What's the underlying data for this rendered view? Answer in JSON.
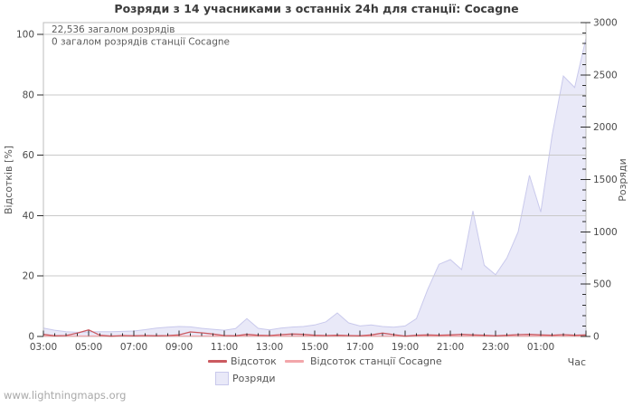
{
  "title": "Розряди з 14 учасниками з останніх 24h для станції: Cocagne",
  "watermark": "www.lightningmaps.org",
  "annotations": {
    "total": "22,536 загалом розрядів",
    "station_total": "0 загалом розрядів станції Cocagne"
  },
  "legend": {
    "percent": "Відсоток",
    "station_percent": "Відсоток станції Cocagne",
    "discharges": "Розряди"
  },
  "colors": {
    "area_fill": "#e9e9f8",
    "area_stroke": "#c9c9ec",
    "percent_line": "#cb5a60",
    "station_line": "#f2a6aa",
    "grid": "#c9c9c9",
    "plot_border": "#bcbcbc",
    "tick": "#2b2b2b",
    "text": "#555555",
    "title": "#3b3b3b",
    "watermark": "#a9a9a9"
  },
  "chart_data": {
    "type": "area",
    "title": "Розряди з 14 учасниками з останніх 24h для станції: Cocagne",
    "grid": "horizontal, every 20% of left axis",
    "legend_position": "bottom",
    "x_axis": {
      "label": "Час",
      "tick_labels": [
        "03:00",
        "05:00",
        "07:00",
        "09:00",
        "11:00",
        "13:00",
        "15:00",
        "17:00",
        "19:00",
        "21:00",
        "23:00",
        "01:00"
      ],
      "minor_tick_minutes": 30,
      "major_tick_hours": 2
    },
    "y_left": {
      "label": "Відсотків [%]",
      "ticks": [
        0,
        20,
        40,
        60,
        80,
        100
      ],
      "range": [
        0,
        100
      ]
    },
    "y_right": {
      "label": "Розряди",
      "ticks": [
        0,
        500,
        1000,
        1500,
        2000,
        2500,
        3000
      ],
      "minor_step": 100,
      "range": [
        0,
        3000
      ]
    },
    "x_times": [
      "03:00",
      "03:30",
      "04:00",
      "04:30",
      "05:00",
      "05:30",
      "06:00",
      "06:30",
      "07:00",
      "07:30",
      "08:00",
      "08:30",
      "09:00",
      "09:30",
      "10:00",
      "10:30",
      "11:00",
      "11:30",
      "12:00",
      "12:30",
      "13:00",
      "13:30",
      "14:00",
      "14:30",
      "15:00",
      "15:30",
      "16:00",
      "16:30",
      "17:00",
      "17:30",
      "18:00",
      "18:30",
      "19:00",
      "19:30",
      "20:00",
      "20:30",
      "21:00",
      "21:30",
      "22:00",
      "22:30",
      "23:00",
      "23:30",
      "00:00",
      "00:30",
      "01:00",
      "01:30",
      "02:00",
      "02:30",
      "03:00"
    ],
    "series": [
      {
        "name": "Розряди",
        "type": "area",
        "axis": "right",
        "values": [
          80,
          60,
          45,
          40,
          43,
          45,
          45,
          48,
          52,
          65,
          80,
          88,
          95,
          92,
          78,
          68,
          60,
          75,
          170,
          78,
          62,
          80,
          90,
          95,
          110,
          140,
          225,
          130,
          100,
          110,
          95,
          88,
          100,
          170,
          450,
          690,
          735,
          640,
          1200,
          680,
          590,
          750,
          1000,
          1540,
          1190,
          1920,
          2490,
          2380,
          2850
        ]
      },
      {
        "name": "Відсоток",
        "type": "line",
        "axis": "left",
        "values": [
          0.7,
          0.2,
          0.3,
          1.1,
          2.2,
          0.4,
          0.1,
          0.3,
          0.2,
          0.3,
          0.2,
          0.3,
          0.5,
          1.5,
          1.2,
          0.8,
          0.3,
          0.2,
          0.7,
          0.4,
          0.3,
          0.6,
          0.8,
          0.7,
          0.4,
          0.3,
          0.4,
          0.3,
          0.2,
          0.5,
          1.1,
          0.6,
          0.1,
          0.4,
          0.5,
          0.4,
          0.5,
          0.7,
          0.5,
          0.4,
          0.2,
          0.4,
          0.6,
          0.7,
          0.5,
          0.4,
          0.6,
          0.4,
          0.5
        ]
      },
      {
        "name": "Відсоток станції Cocagne",
        "type": "line",
        "axis": "left",
        "values": [
          0,
          0,
          0,
          0,
          0,
          0,
          0,
          0,
          0,
          0,
          0,
          0,
          0,
          0,
          0,
          0,
          0,
          0,
          0,
          0,
          0,
          0,
          0,
          0,
          0,
          0,
          0,
          0,
          0,
          0,
          0,
          0,
          0,
          0,
          0,
          0,
          0,
          0,
          0,
          0,
          0,
          0,
          0,
          0,
          0,
          0,
          0,
          0,
          0
        ]
      }
    ]
  }
}
